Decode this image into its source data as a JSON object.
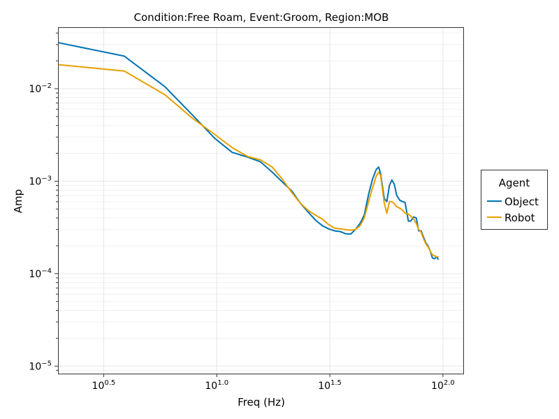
{
  "chart_data": {
    "type": "line",
    "title": "Condition:Free Roam, Event:Groom, Region:MOB",
    "xlabel": "Freq (Hz)",
    "ylabel": "Amp",
    "xscale": "log",
    "yscale": "log",
    "xlim": [
      2.0,
      123
    ],
    "ylim": [
      8.3e-06,
      0.0454
    ],
    "x_ticks": [
      {
        "value": 3.1623,
        "base": "10",
        "exp": "0.5"
      },
      {
        "value": 10,
        "base": "10",
        "exp": "1.0"
      },
      {
        "value": 31.623,
        "base": "10",
        "exp": "1.5"
      },
      {
        "value": 100,
        "base": "10",
        "exp": "2.0"
      }
    ],
    "y_ticks": [
      {
        "value": 0.01,
        "base": "10",
        "exp": "−2"
      },
      {
        "value": 0.001,
        "base": "10",
        "exp": "−3"
      },
      {
        "value": 0.0001,
        "base": "10",
        "exp": "−4"
      },
      {
        "value": 1e-05,
        "base": "10",
        "exp": "−5"
      }
    ],
    "grid": true,
    "legend": {
      "title": "Agent",
      "position": "right"
    },
    "series": [
      {
        "name": "Object",
        "color": "#0072B2",
        "points": [
          [
            2.0,
            0.0314
          ],
          [
            3.9,
            0.0225
          ],
          [
            5.9,
            0.0105
          ],
          [
            7.8,
            0.0052
          ],
          [
            9.8,
            0.0029
          ],
          [
            11.7,
            0.00205
          ],
          [
            13.7,
            0.00182
          ],
          [
            15.6,
            0.00162
          ],
          [
            17.6,
            0.00125
          ],
          [
            19.5,
            0.00098
          ],
          [
            21.5,
            0.00078
          ],
          [
            23.4,
            0.00058
          ],
          [
            25.4,
            0.00046
          ],
          [
            27.3,
            0.00038
          ],
          [
            29.3,
            0.00033
          ],
          [
            31.2,
            0.000305
          ],
          [
            33.2,
            0.00029
          ],
          [
            35.2,
            0.000285
          ],
          [
            37.1,
            0.00027
          ],
          [
            39.1,
            0.000268
          ],
          [
            41.0,
            0.0003
          ],
          [
            43.0,
            0.00035
          ],
          [
            44.9,
            0.00043
          ],
          [
            46.9,
            0.00072
          ],
          [
            48.8,
            0.00105
          ],
          [
            50.8,
            0.00135
          ],
          [
            52.0,
            0.00142
          ],
          [
            53.0,
            0.0012
          ],
          [
            55.0,
            0.00065
          ],
          [
            56.5,
            0.0006
          ],
          [
            58.0,
            0.0009
          ],
          [
            59.5,
            0.00103
          ],
          [
            61.0,
            0.00092
          ],
          [
            62.5,
            0.0007
          ],
          [
            64.5,
            0.00062
          ],
          [
            66.5,
            0.0006
          ],
          [
            68.0,
            0.00059
          ],
          [
            70.3,
            0.00037
          ],
          [
            72.0,
            0.00037
          ],
          [
            74.2,
            0.00041
          ],
          [
            76.2,
            0.0004
          ],
          [
            78.1,
            0.00029
          ],
          [
            80.1,
            0.00029
          ],
          [
            82.0,
            0.00025
          ],
          [
            84.0,
            0.000215
          ],
          [
            85.9,
            0.0002
          ],
          [
            87.9,
            0.000175
          ],
          [
            89.8,
            0.000148
          ],
          [
            91.8,
            0.000145
          ],
          [
            93.7,
            0.000152
          ],
          [
            95.7,
            0.000142
          ]
        ]
      },
      {
        "name": "Robot",
        "color": "#E69F00",
        "points": [
          [
            2.0,
            0.0182
          ],
          [
            3.9,
            0.0155
          ],
          [
            5.9,
            0.0086
          ],
          [
            7.8,
            0.0048
          ],
          [
            9.8,
            0.0032
          ],
          [
            11.7,
            0.0023
          ],
          [
            13.7,
            0.00185
          ],
          [
            15.6,
            0.0017
          ],
          [
            17.6,
            0.00142
          ],
          [
            19.5,
            0.00105
          ],
          [
            21.5,
            0.00075
          ],
          [
            23.4,
            0.00058
          ],
          [
            25.4,
            0.00048
          ],
          [
            27.3,
            0.00043
          ],
          [
            29.3,
            0.00039
          ],
          [
            31.2,
            0.00034
          ],
          [
            33.2,
            0.00031
          ],
          [
            35.2,
            0.000305
          ],
          [
            37.1,
            0.0003
          ],
          [
            39.1,
            0.000295
          ],
          [
            41.0,
            0.0003
          ],
          [
            43.0,
            0.00033
          ],
          [
            44.9,
            0.0004
          ],
          [
            46.9,
            0.0006
          ],
          [
            48.8,
            0.00085
          ],
          [
            50.8,
            0.00115
          ],
          [
            52.0,
            0.00125
          ],
          [
            53.0,
            0.00115
          ],
          [
            55.0,
            0.00058
          ],
          [
            56.5,
            0.00045
          ],
          [
            58.0,
            0.0006
          ],
          [
            59.5,
            0.0006
          ],
          [
            61.0,
            0.00057
          ],
          [
            62.5,
            0.00053
          ],
          [
            64.5,
            0.00051
          ],
          [
            66.5,
            0.00048
          ],
          [
            68.0,
            0.00045
          ],
          [
            70.3,
            0.00044
          ],
          [
            72.0,
            0.00042
          ],
          [
            74.2,
            0.00039
          ],
          [
            76.2,
            0.00035
          ],
          [
            78.1,
            0.0003
          ],
          [
            80.1,
            0.00028
          ],
          [
            82.0,
            0.00024
          ],
          [
            84.0,
            0.00021
          ],
          [
            85.9,
            0.000195
          ],
          [
            87.9,
            0.000175
          ],
          [
            89.8,
            0.00016
          ],
          [
            91.8,
            0.000156
          ],
          [
            93.7,
            0.000152
          ],
          [
            95.7,
            0.000152
          ]
        ]
      }
    ]
  }
}
